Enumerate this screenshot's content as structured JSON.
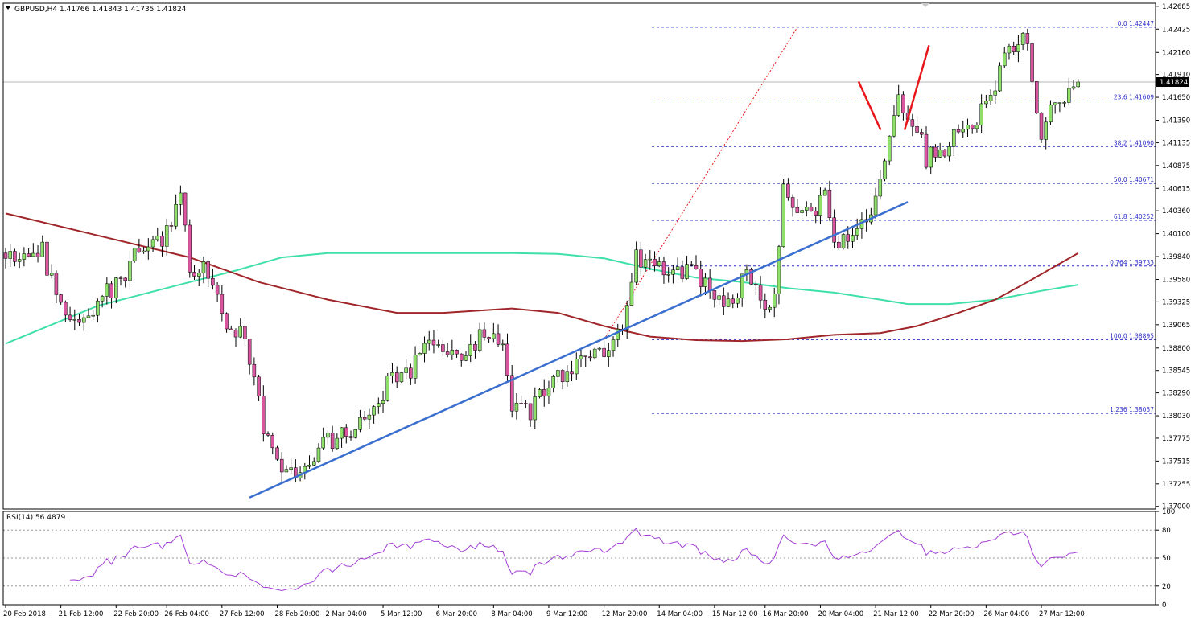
{
  "header": {
    "symbol_line": "GBPUSD,H4  1.41766 1.41843 1.41735 1.41824"
  },
  "colors": {
    "bull_candle": "#8ee06b",
    "bear_candle": "#d9559f",
    "ma_fast": "#3fe0a8",
    "ma_slow": "#a0262a",
    "trendline": "#3a6fd0",
    "fib_line": "#2f2fc9",
    "forecast_arrow": "#e8161b",
    "rsi_line": "#a33fd6",
    "frame": "#000000"
  },
  "chart_data": [
    {
      "type": "candlestick",
      "title": "GBPUSD,H4",
      "last_price": 1.41824,
      "ylim": [
        1.3697,
        1.4272
      ],
      "y_ticks": [
        1.42685,
        1.42425,
        1.4216,
        1.4191,
        1.4165,
        1.4139,
        1.41135,
        1.40875,
        1.40615,
        1.4036,
        1.401,
        1.3984,
        1.3958,
        1.39325,
        1.39065,
        1.388,
        1.38545,
        1.3829,
        1.3803,
        1.37775,
        1.37515,
        1.37255,
        1.37
      ],
      "y_tick_labels": [
        "1.42685",
        "1.42425",
        "1.42160",
        "1.41910",
        "1.41650",
        "1.41390",
        "1.41135",
        "1.40875",
        "1.40615",
        "1.40360",
        "1.40100",
        "1.39840",
        "1.39580",
        "1.39325",
        "1.39065",
        "1.38800",
        "1.38545",
        "1.38290",
        "1.38030",
        "1.37775",
        "1.37515",
        "1.37255",
        "1.37000"
      ],
      "x_tick_labels": [
        {
          "i": 0,
          "label": "20 Feb 2018"
        },
        {
          "i": 12,
          "label": "21 Feb 12:00"
        },
        {
          "i": 24,
          "label": "22 Feb 20:00"
        },
        {
          "i": 35,
          "label": "26 Feb 04:00"
        },
        {
          "i": 47,
          "label": "27 Feb 12:00"
        },
        {
          "i": 59,
          "label": "28 Feb 20:00"
        },
        {
          "i": 70,
          "label": "2 Mar 04:00"
        },
        {
          "i": 82,
          "label": "5 Mar 12:00"
        },
        {
          "i": 94,
          "label": "6 Mar 20:00"
        },
        {
          "i": 106,
          "label": "8 Mar 04:00"
        },
        {
          "i": 118,
          "label": "9 Mar 12:00"
        },
        {
          "i": 130,
          "label": "12 Mar 20:00"
        },
        {
          "i": 142,
          "label": "14 Mar 04:00"
        },
        {
          "i": 154,
          "label": "15 Mar 12:00"
        },
        {
          "i": 165,
          "label": "16 Mar 20:00"
        },
        {
          "i": 177,
          "label": "20 Mar 04:00"
        },
        {
          "i": 189,
          "label": "21 Mar 12:00"
        },
        {
          "i": 201,
          "label": "22 Mar 20:00"
        },
        {
          "i": 213,
          "label": "26 Mar 04:00"
        },
        {
          "i": 225,
          "label": "27 Mar 12:00"
        }
      ],
      "path": [
        [
          0,
          1.3988
        ],
        [
          4,
          1.3985
        ],
        [
          8,
          1.399
        ],
        [
          12,
          1.3925
        ],
        [
          16,
          1.3905
        ],
        [
          20,
          1.3935
        ],
        [
          24,
          1.395
        ],
        [
          28,
          1.3985
        ],
        [
          32,
          1.3995
        ],
        [
          36,
          1.4015
        ],
        [
          38,
          1.406
        ],
        [
          40,
          1.3975
        ],
        [
          44,
          1.3965
        ],
        [
          48,
          1.3905
        ],
        [
          52,
          1.3895
        ],
        [
          56,
          1.379
        ],
        [
          60,
          1.3745
        ],
        [
          64,
          1.3735
        ],
        [
          68,
          1.3765
        ],
        [
          72,
          1.378
        ],
        [
          76,
          1.3785
        ],
        [
          80,
          1.381
        ],
        [
          84,
          1.385
        ],
        [
          88,
          1.3855
        ],
        [
          92,
          1.3885
        ],
        [
          96,
          1.388
        ],
        [
          100,
          1.3875
        ],
        [
          104,
          1.3895
        ],
        [
          108,
          1.388
        ],
        [
          110,
          1.3815
        ],
        [
          114,
          1.3805
        ],
        [
          118,
          1.384
        ],
        [
          122,
          1.3855
        ],
        [
          126,
          1.3865
        ],
        [
          130,
          1.388
        ],
        [
          134,
          1.3895
        ],
        [
          137,
          1.3985
        ],
        [
          141,
          1.3975
        ],
        [
          145,
          1.3965
        ],
        [
          149,
          1.397
        ],
        [
          153,
          1.3945
        ],
        [
          157,
          1.3935
        ],
        [
          161,
          1.396
        ],
        [
          165,
          1.3925
        ],
        [
          167,
          1.3935
        ],
        [
          169,
          1.406
        ],
        [
          171,
          1.4035
        ],
        [
          175,
          1.403
        ],
        [
          178,
          1.4055
        ],
        [
          180,
          1.3995
        ],
        [
          184,
          1.401
        ],
        [
          188,
          1.4035
        ],
        [
          190,
          1.4065
        ],
        [
          192,
          1.413
        ],
        [
          194,
          1.416
        ],
        [
          198,
          1.413
        ],
        [
          200,
          1.4095
        ],
        [
          204,
          1.4105
        ],
        [
          206,
          1.4125
        ],
        [
          210,
          1.4135
        ],
        [
          214,
          1.416
        ],
        [
          216,
          1.4195
        ],
        [
          219,
          1.4225
        ],
        [
          222,
          1.423
        ],
        [
          224,
          1.414
        ],
        [
          225,
          1.411
        ],
        [
          227,
          1.415
        ],
        [
          231,
          1.4165
        ],
        [
          233,
          1.41824
        ]
      ],
      "ma_fast": [
        [
          0,
          1.3885
        ],
        [
          20,
          1.3928
        ],
        [
          40,
          1.3955
        ],
        [
          50,
          1.3968
        ],
        [
          60,
          1.3983
        ],
        [
          70,
          1.3988
        ],
        [
          90,
          1.3988
        ],
        [
          110,
          1.3988
        ],
        [
          120,
          1.3987
        ],
        [
          130,
          1.3982
        ],
        [
          140,
          1.397
        ],
        [
          150,
          1.396
        ],
        [
          160,
          1.3955
        ],
        [
          170,
          1.3948
        ],
        [
          180,
          1.3943
        ],
        [
          190,
          1.3935
        ],
        [
          196,
          1.393
        ],
        [
          205,
          1.393
        ],
        [
          215,
          1.3935
        ],
        [
          225,
          1.3945
        ],
        [
          233,
          1.3952
        ]
      ],
      "ma_slow": [
        [
          0,
          1.4033
        ],
        [
          20,
          1.4008
        ],
        [
          40,
          1.3983
        ],
        [
          55,
          1.3955
        ],
        [
          70,
          1.3935
        ],
        [
          85,
          1.392
        ],
        [
          95,
          1.392
        ],
        [
          110,
          1.3925
        ],
        [
          120,
          1.392
        ],
        [
          130,
          1.3905
        ],
        [
          140,
          1.3893
        ],
        [
          150,
          1.3889
        ],
        [
          160,
          1.3888
        ],
        [
          170,
          1.389
        ],
        [
          180,
          1.3895
        ],
        [
          190,
          1.3897
        ],
        [
          198,
          1.3905
        ],
        [
          207,
          1.392
        ],
        [
          215,
          1.3935
        ],
        [
          222,
          1.3955
        ],
        [
          233,
          1.3988
        ]
      ],
      "trendline": {
        "from": [
          53,
          1.371
        ],
        "to": [
          196,
          1.4046
        ]
      },
      "fib_guide": {
        "from": [
          130,
          1.38895
        ],
        "to": [
          172,
          1.42447
        ]
      },
      "fib_levels": [
        {
          "label": "0.0  1.42447",
          "value": 1.42447
        },
        {
          "label": "23.6  1.41609",
          "value": 1.41609
        },
        {
          "label": "38.2  1.41090",
          "value": 1.4109
        },
        {
          "label": "50.0  1.40671",
          "value": 1.40671
        },
        {
          "label": "61.8  1.40252",
          "value": 1.40252
        },
        {
          "label": "0.764  1.39733",
          "value": 1.39733
        },
        {
          "label": "100.0  1.38895",
          "value": 1.38895
        },
        {
          "label": "1.236  1.38057",
          "value": 1.38057
        }
      ],
      "forecast_arrows": [
        {
          "from": [
            185.3,
            1.4183
          ],
          "to": [
            190.1,
            1.4128
          ]
        },
        {
          "from": [
            195.3,
            1.4128
          ],
          "to": [
            200.6,
            1.4224
          ]
        }
      ]
    },
    {
      "type": "line",
      "title": "RSI(14) 56.4879",
      "ylim": [
        0,
        100
      ],
      "y_ticks": [
        100,
        80,
        50,
        20,
        0
      ],
      "y_tick_labels": [
        "100",
        "80",
        "50",
        "20",
        "0"
      ],
      "levels": [
        80,
        50,
        20
      ],
      "last_value": 56.4879
    }
  ]
}
